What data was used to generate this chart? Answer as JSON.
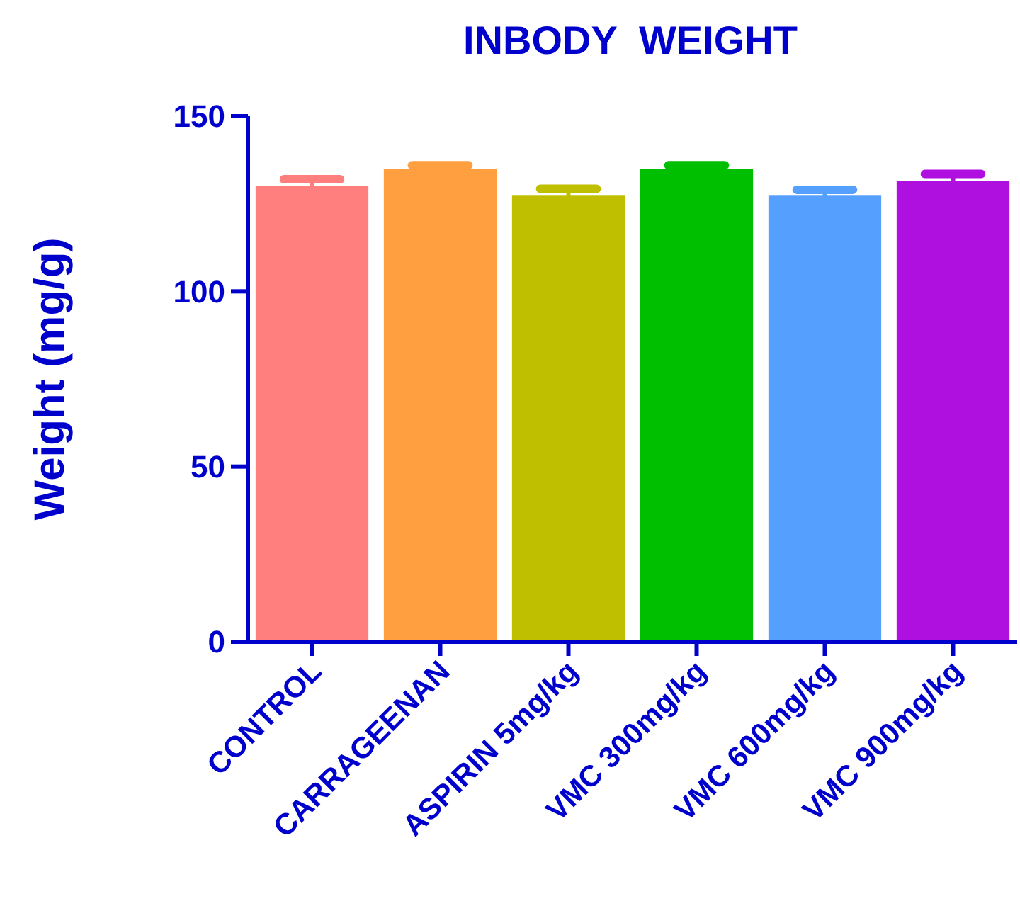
{
  "chart_data": {
    "type": "bar",
    "title": "INBODY  WEIGHT",
    "ylabel": "Weight (mg/g)",
    "categories": [
      "CONTROL",
      "CARRAGEENAN",
      "ASPIRIN 5mg/kg",
      "VMC 300mg/kg",
      "VMC 600mg/kg",
      "VMC 900mg/kg"
    ],
    "values": [
      130,
      135,
      127.5,
      135,
      127.5,
      131.5
    ],
    "errors": [
      2,
      1,
      1.8,
      1,
      1.5,
      2
    ],
    "colors": [
      "#ff7f7f",
      "#ff9f3f",
      "#bfbf00",
      "#00bf00",
      "#559fff",
      "#af0fdf"
    ],
    "ylim": [
      0,
      150
    ],
    "yticks": [
      0,
      50,
      100,
      150
    ],
    "grid": false
  }
}
